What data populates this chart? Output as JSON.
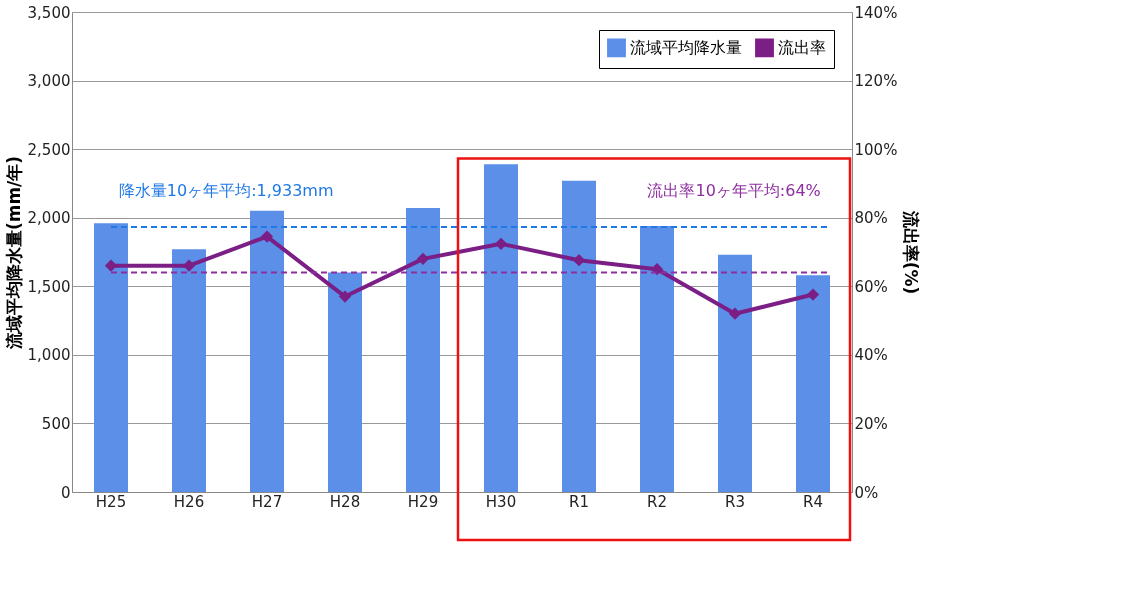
{
  "chart_data": {
    "type": "bar",
    "categories": [
      "H25",
      "H26",
      "H27",
      "H28",
      "H29",
      "H30",
      "R1",
      "R2",
      "R3",
      "R4"
    ],
    "ylabel": "流域平均降水量(mm/年)",
    "y2label": "流出率(%)",
    "ylim": [
      0,
      3500
    ],
    "yticks": [
      {
        "value": 0,
        "label": "0"
      },
      {
        "value": 500,
        "label": "500"
      },
      {
        "value": 1000,
        "label": "1,000"
      },
      {
        "value": 1500,
        "label": "1,500"
      },
      {
        "value": 2000,
        "label": "2,000"
      },
      {
        "value": 2500,
        "label": "2,500"
      },
      {
        "value": 3000,
        "label": "3,000"
      },
      {
        "value": 3500,
        "label": "3,500"
      }
    ],
    "y2lim": [
      0,
      140
    ],
    "y2ticks": [
      {
        "value": 0,
        "label": "0%"
      },
      {
        "value": 20,
        "label": "20%"
      },
      {
        "value": 40,
        "label": "40%"
      },
      {
        "value": 60,
        "label": "60%"
      },
      {
        "value": 80,
        "label": "80%"
      },
      {
        "value": 100,
        "label": "100%"
      },
      {
        "value": 120,
        "label": "120%"
      },
      {
        "value": 140,
        "label": "140%"
      }
    ],
    "series": [
      {
        "name": "流域平均降水量",
        "color": "#5b8fe8",
        "values": [
          1960,
          1770,
          2050,
          1600,
          2070,
          2390,
          2270,
          1940,
          1730,
          1580
        ]
      },
      {
        "name": "流出率",
        "type": "line",
        "axis": "y2",
        "color": "#7b1f86",
        "marker": "diamond",
        "values": [
          66,
          66,
          74.5,
          57,
          68,
          72.4,
          67.6,
          65,
          52,
          57.6
        ]
      }
    ],
    "ref_lines": [
      {
        "axis": "y",
        "value": 1933,
        "label": "降水量10ヶ年平均:1,933mm",
        "color": "#1e78e6",
        "line_style": "dashed"
      },
      {
        "axis": "y2",
        "value": 64,
        "label": "流出率10ヶ年平均:64%",
        "color": "#8e2ea0",
        "line_style": "dashed"
      }
    ],
    "grid": "y",
    "legend": "top right"
  }
}
